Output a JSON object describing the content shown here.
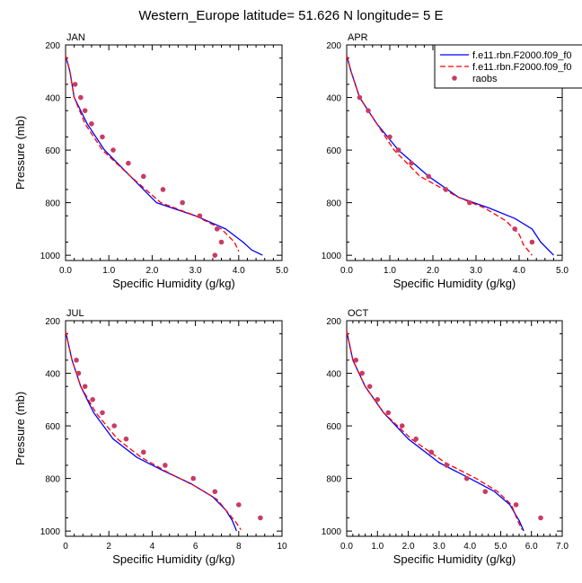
{
  "title": "Western_Europe  latitude= 51.626 N longitude= 5 E",
  "legend": {
    "entries": [
      {
        "label": "f.e11.rbn.F2000.f09_f0",
        "color": "#0000ff",
        "dash": "solid"
      },
      {
        "label": "f.e11.rbn.F2000.f09_f0",
        "color": "#ff0000",
        "dash": "dashed"
      },
      {
        "label": "raobs",
        "color": "#c83c64",
        "dash": "marker"
      }
    ]
  },
  "chart_data": [
    {
      "type": "line",
      "panel_label": "JAN",
      "xlabel": "Specific Humidity (g/kg)",
      "ylabel": "Pressure (mb)",
      "xlim": [
        0,
        5
      ],
      "ylim": [
        200,
        1020
      ],
      "xticks": [
        "0.0",
        "1.0",
        "2.0",
        "3.0",
        "4.0",
        "5.0"
      ],
      "yticks": [
        "200",
        "400",
        "600",
        "800",
        "1000"
      ],
      "y_reversed": true,
      "series": [
        {
          "color": "#0000ff",
          "dash": "solid",
          "points": [
            [
              0.0,
              240
            ],
            [
              0.1,
              300
            ],
            [
              0.2,
              400
            ],
            [
              0.5,
              500
            ],
            [
              0.9,
              600
            ],
            [
              1.5,
              700
            ],
            [
              2.1,
              800
            ],
            [
              3.0,
              850
            ],
            [
              3.7,
              900
            ],
            [
              4.1,
              950
            ],
            [
              4.3,
              980
            ],
            [
              4.55,
              1000
            ]
          ]
        },
        {
          "color": "#ff0000",
          "dash": "dashed",
          "points": [
            [
              0.0,
              240
            ],
            [
              0.1,
              300
            ],
            [
              0.2,
              400
            ],
            [
              0.45,
              500
            ],
            [
              0.85,
              600
            ],
            [
              1.5,
              700
            ],
            [
              2.2,
              800
            ],
            [
              3.0,
              850
            ],
            [
              3.6,
              900
            ],
            [
              3.9,
              950
            ],
            [
              4.0,
              985
            ]
          ]
        },
        {
          "color": "#c83c64",
          "dash": "marker",
          "points": [
            [
              0.22,
              350
            ],
            [
              0.35,
              400
            ],
            [
              0.45,
              450
            ],
            [
              0.6,
              500
            ],
            [
              0.85,
              550
            ],
            [
              1.1,
              600
            ],
            [
              1.45,
              650
            ],
            [
              1.8,
              700
            ],
            [
              2.25,
              750
            ],
            [
              2.7,
              800
            ],
            [
              3.1,
              850
            ],
            [
              3.5,
              900
            ],
            [
              3.6,
              950
            ],
            [
              3.45,
              1000
            ]
          ]
        }
      ]
    },
    {
      "type": "line",
      "panel_label": "APR",
      "xlabel": "Specific Humidity (g/kg)",
      "ylabel": "",
      "xlim": [
        0,
        5
      ],
      "ylim": [
        200,
        1020
      ],
      "xticks": [
        "0.0",
        "1.0",
        "2.0",
        "3.0",
        "4.0",
        "5.0"
      ],
      "yticks": [
        "200",
        "400",
        "600",
        "800",
        "1000"
      ],
      "y_reversed": true,
      "series": [
        {
          "color": "#0000ff",
          "dash": "solid",
          "points": [
            [
              0.0,
              240
            ],
            [
              0.1,
              300
            ],
            [
              0.3,
              400
            ],
            [
              0.7,
              500
            ],
            [
              1.2,
              600
            ],
            [
              1.9,
              700
            ],
            [
              2.6,
              780
            ],
            [
              3.3,
              820
            ],
            [
              3.9,
              860
            ],
            [
              4.3,
              900
            ],
            [
              4.5,
              950
            ],
            [
              4.8,
              1000
            ]
          ]
        },
        {
          "color": "#ff0000",
          "dash": "dashed",
          "points": [
            [
              0.0,
              240
            ],
            [
              0.1,
              300
            ],
            [
              0.3,
              400
            ],
            [
              0.7,
              500
            ],
            [
              1.1,
              600
            ],
            [
              1.7,
              700
            ],
            [
              2.6,
              780
            ],
            [
              3.2,
              820
            ],
            [
              3.7,
              870
            ],
            [
              4.0,
              920
            ],
            [
              4.1,
              960
            ],
            [
              4.3,
              1000
            ]
          ]
        },
        {
          "color": "#c83c64",
          "dash": "marker",
          "points": [
            [
              0.3,
              400
            ],
            [
              0.5,
              450
            ],
            [
              1.0,
              550
            ],
            [
              1.2,
              600
            ],
            [
              1.5,
              650
            ],
            [
              1.9,
              700
            ],
            [
              2.3,
              750
            ],
            [
              2.85,
              800
            ],
            [
              3.9,
              900
            ],
            [
              4.3,
              950
            ]
          ]
        }
      ]
    },
    {
      "type": "line",
      "panel_label": "JUL",
      "xlabel": "Specific Humidity (g/kg)",
      "ylabel": "Pressure (mb)",
      "xlim": [
        0,
        10
      ],
      "ylim": [
        200,
        1020
      ],
      "xticks": [
        "0",
        "2",
        "4",
        "6",
        "8",
        "10"
      ],
      "yticks": [
        "200",
        "400",
        "600",
        "800",
        "1000"
      ],
      "y_reversed": true,
      "series": [
        {
          "color": "#0000ff",
          "dash": "solid",
          "points": [
            [
              0.0,
              240
            ],
            [
              0.3,
              350
            ],
            [
              0.7,
              450
            ],
            [
              1.3,
              550
            ],
            [
              2.2,
              650
            ],
            [
              3.3,
              720
            ],
            [
              4.5,
              770
            ],
            [
              5.8,
              820
            ],
            [
              6.8,
              870
            ],
            [
              7.4,
              920
            ],
            [
              7.7,
              960
            ],
            [
              7.9,
              1000
            ]
          ]
        },
        {
          "color": "#ff0000",
          "dash": "dashed",
          "points": [
            [
              0.0,
              240
            ],
            [
              0.3,
              350
            ],
            [
              0.7,
              450
            ],
            [
              1.4,
              550
            ],
            [
              2.4,
              650
            ],
            [
              3.5,
              720
            ],
            [
              4.8,
              780
            ],
            [
              6.0,
              830
            ],
            [
              7.0,
              880
            ],
            [
              7.5,
              930
            ],
            [
              7.9,
              970
            ],
            [
              8.1,
              995
            ]
          ]
        },
        {
          "color": "#c83c64",
          "dash": "marker",
          "points": [
            [
              0.5,
              350
            ],
            [
              0.6,
              400
            ],
            [
              0.9,
              450
            ],
            [
              1.25,
              500
            ],
            [
              1.7,
              550
            ],
            [
              2.25,
              600
            ],
            [
              2.8,
              650
            ],
            [
              3.6,
              700
            ],
            [
              4.6,
              750
            ],
            [
              5.9,
              800
            ],
            [
              6.9,
              850
            ],
            [
              8.0,
              900
            ],
            [
              9.0,
              950
            ]
          ]
        }
      ]
    },
    {
      "type": "line",
      "panel_label": "OCT",
      "xlabel": "Specific Humidity (g/kg)",
      "ylabel": "",
      "xlim": [
        0,
        7
      ],
      "ylim": [
        200,
        1020
      ],
      "xticks": [
        "0.0",
        "1.0",
        "2.0",
        "3.0",
        "4.0",
        "5.0",
        "6.0",
        "7.0"
      ],
      "yticks": [
        "200",
        "400",
        "600",
        "800",
        "1000"
      ],
      "y_reversed": true,
      "series": [
        {
          "color": "#0000ff",
          "dash": "solid",
          "points": [
            [
              0.0,
              240
            ],
            [
              0.2,
              350
            ],
            [
              0.6,
              450
            ],
            [
              1.2,
              550
            ],
            [
              2.0,
              650
            ],
            [
              3.0,
              740
            ],
            [
              4.0,
              800
            ],
            [
              4.8,
              850
            ],
            [
              5.3,
              900
            ],
            [
              5.6,
              960
            ],
            [
              5.75,
              1000
            ]
          ]
        },
        {
          "color": "#ff0000",
          "dash": "dashed",
          "points": [
            [
              0.0,
              240
            ],
            [
              0.2,
              350
            ],
            [
              0.6,
              450
            ],
            [
              1.2,
              550
            ],
            [
              2.1,
              650
            ],
            [
              3.2,
              740
            ],
            [
              4.2,
              800
            ],
            [
              4.9,
              850
            ],
            [
              5.35,
              900
            ],
            [
              5.55,
              960
            ],
            [
              5.7,
              995
            ]
          ]
        },
        {
          "color": "#c83c64",
          "dash": "marker",
          "points": [
            [
              0.3,
              350
            ],
            [
              0.5,
              400
            ],
            [
              0.75,
              450
            ],
            [
              1.0,
              500
            ],
            [
              1.35,
              550
            ],
            [
              1.8,
              600
            ],
            [
              2.25,
              650
            ],
            [
              2.75,
              700
            ],
            [
              3.25,
              750
            ],
            [
              3.9,
              800
            ],
            [
              4.5,
              850
            ],
            [
              5.5,
              900
            ],
            [
              6.3,
              950
            ]
          ]
        }
      ]
    }
  ]
}
